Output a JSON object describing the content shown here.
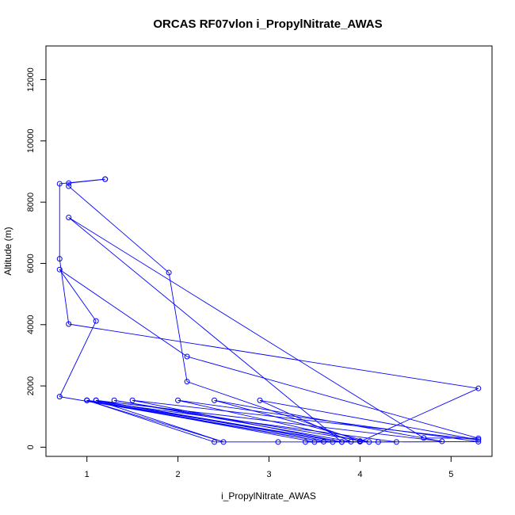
{
  "chart_data": {
    "type": "line",
    "title": "ORCAS RF07vlon i_PropylNitrate_AWAS",
    "xlabel": "i_PropylNitrate_AWAS",
    "ylabel": "Altitude (m)",
    "xlim": [
      0.55,
      5.45
    ],
    "ylim": [
      -300,
      13100
    ],
    "x_ticks": [
      1,
      2,
      3,
      4,
      5
    ],
    "y_ticks": [
      0,
      2000,
      4000,
      6000,
      8000,
      10000,
      12000
    ],
    "series_color": "#0000ff",
    "marker": "open-circle",
    "series": [
      {
        "points": [
          [
            1.2,
            8750
          ],
          [
            0.7,
            8600
          ],
          [
            0.7,
            6150
          ],
          [
            0.8,
            4020
          ],
          [
            5.3,
            1920
          ],
          [
            4.0,
            180
          ],
          [
            3.5,
            170
          ],
          [
            1.0,
            1530
          ],
          [
            2.5,
            170
          ],
          [
            1.1,
            1530
          ],
          [
            4.9,
            190
          ],
          [
            2.4,
            1530
          ],
          [
            4.1,
            170
          ],
          [
            1.3,
            1530
          ],
          [
            3.9,
            180
          ],
          [
            2.9,
            1530
          ],
          [
            5.3,
            240
          ],
          [
            1.5,
            1530
          ],
          [
            3.8,
            170
          ],
          [
            1.0,
            1530
          ],
          [
            4.4,
            170
          ],
          [
            3.1,
            170
          ],
          [
            2.4,
            170
          ],
          [
            1.0,
            1530
          ],
          [
            3.6,
            180
          ],
          [
            0.7,
            1650
          ],
          [
            1.1,
            4120
          ],
          [
            0.7,
            5800
          ],
          [
            2.1,
            2960
          ],
          [
            5.3,
            290
          ],
          [
            4.7,
            300
          ],
          [
            0.8,
            7500
          ],
          [
            3.8,
            170
          ],
          [
            1.1,
            1530
          ],
          [
            3.7,
            170
          ],
          [
            3.4,
            170
          ],
          [
            4.2,
            170
          ],
          [
            5.3,
            180
          ],
          [
            2.0,
            1530
          ],
          [
            4.0,
            200
          ],
          [
            2.1,
            2140
          ],
          [
            1.9,
            5700
          ],
          [
            0.8,
            8520
          ],
          [
            0.8,
            8620
          ],
          [
            1.2,
            8750
          ]
        ]
      }
    ]
  }
}
